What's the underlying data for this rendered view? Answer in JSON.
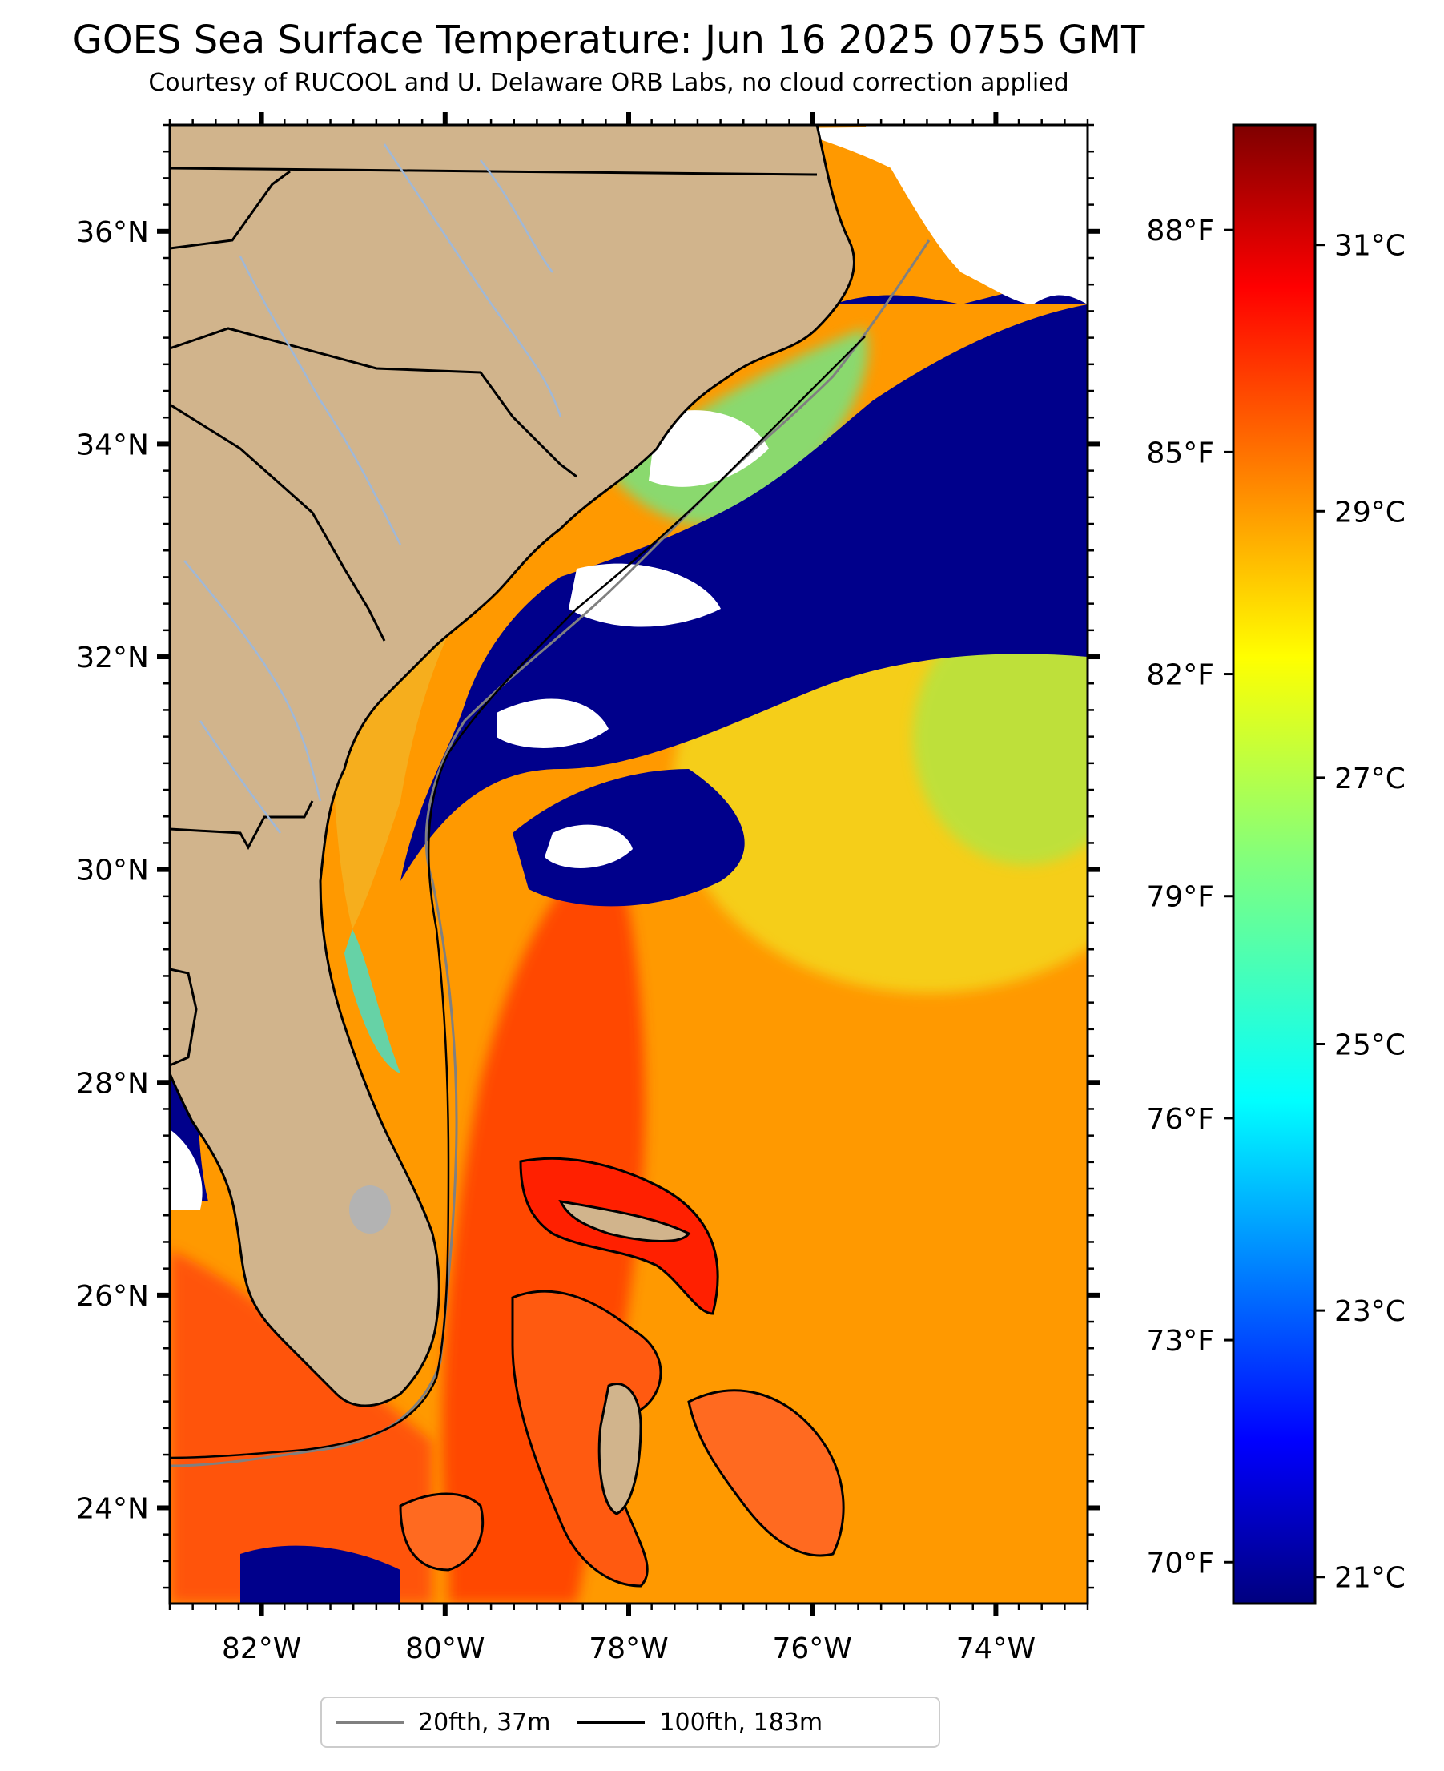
{
  "title": "GOES Sea Surface Temperature: Jun 16 2025 0755 GMT",
  "subtitle": "Courtesy of RUCOOL and U. Delaware ORB Labs, no cloud correction applied",
  "map": {
    "lat_range": [
      23.1,
      37.0
    ],
    "lon_range": [
      -83.0,
      -73.0
    ],
    "lat_ticks": [
      {
        "value": 24,
        "label": "24°N"
      },
      {
        "value": 26,
        "label": "26°N"
      },
      {
        "value": 28,
        "label": "28°N"
      },
      {
        "value": 30,
        "label": "30°N"
      },
      {
        "value": 32,
        "label": "32°N"
      },
      {
        "value": 34,
        "label": "34°N"
      },
      {
        "value": 36,
        "label": "36°N"
      }
    ],
    "lon_ticks": [
      {
        "value": -82,
        "label": "82°W"
      },
      {
        "value": -80,
        "label": "80°W"
      },
      {
        "value": -78,
        "label": "78°W"
      },
      {
        "value": -76,
        "label": "76°W"
      },
      {
        "value": -74,
        "label": "74°W"
      }
    ],
    "colors": {
      "land": "#d1b48c",
      "ocean_warm": "#ff9900",
      "gulf_stream": "#ff3300",
      "cold": "#00008b",
      "cloud": "#ffffff",
      "contour_20fth": "#808080",
      "contour_100fth": "#000000",
      "state_border": "#000000",
      "rivers": "#9fb8d8"
    }
  },
  "colorbar": {
    "celsius_range": [
      20.8,
      31.9
    ],
    "celsius_ticks": [
      {
        "value": 21,
        "label": "21°C"
      },
      {
        "value": 23,
        "label": "23°C"
      },
      {
        "value": 25,
        "label": "25°C"
      },
      {
        "value": 27,
        "label": "27°C"
      },
      {
        "value": 29,
        "label": "29°C"
      },
      {
        "value": 31,
        "label": "31°C"
      }
    ],
    "fahrenheit_ticks": [
      {
        "value": 70,
        "label": "70°F"
      },
      {
        "value": 73,
        "label": "73°F"
      },
      {
        "value": 76,
        "label": "76°F"
      },
      {
        "value": 79,
        "label": "79°F"
      },
      {
        "value": 82,
        "label": "82°F"
      },
      {
        "value": 85,
        "label": "85°F"
      },
      {
        "value": 88,
        "label": "88°F"
      }
    ],
    "colormap": "jet"
  },
  "legend": {
    "items": [
      {
        "label": "20fth, 37m",
        "color": "#808080"
      },
      {
        "label": "100fth, 183m",
        "color": "#000000"
      }
    ],
    "placement": "bottom-center"
  }
}
